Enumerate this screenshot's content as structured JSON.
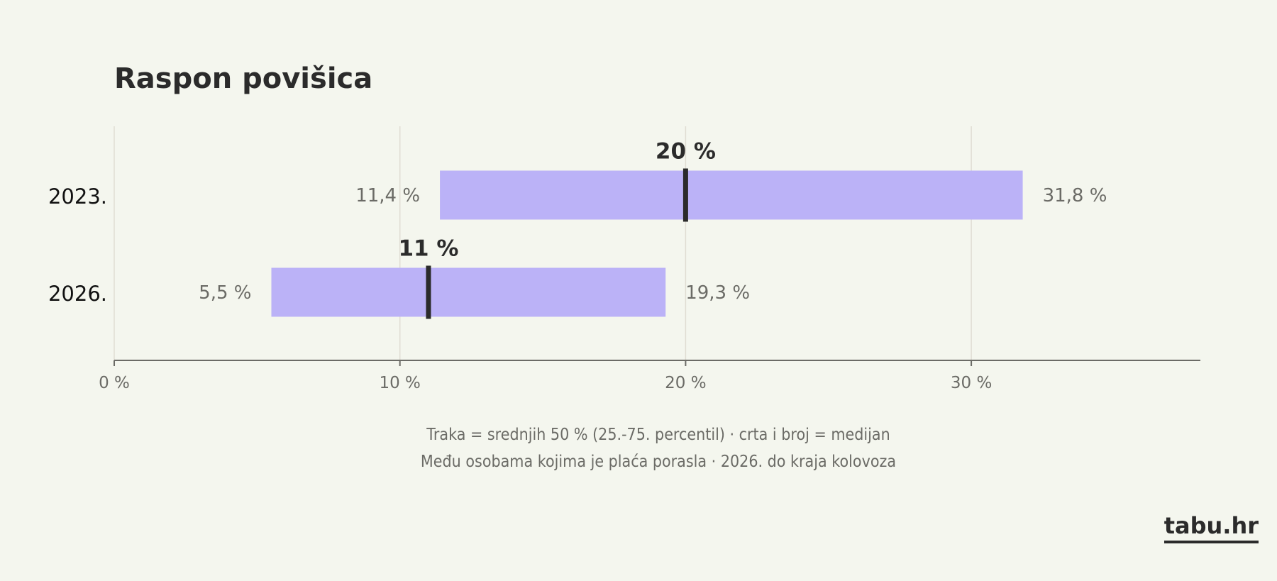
{
  "chart_data": {
    "type": "bar",
    "title": "Raspon povišica",
    "subtitle_lines": [
      "Traka = srednjih 50 % (25.-75. percentil)  ·  crta i broj = medijan",
      "Među osobama kojima je plaća porasla  ·  2026. do kraja kolovoza"
    ],
    "orientation": "horizontal-range",
    "categories": [
      "2023.",
      "2026."
    ],
    "rows": [
      {
        "label": "2023.",
        "p25": 11.4,
        "median": 20,
        "p75": 31.8,
        "p25_label": "11,4 %",
        "median_label": "20 %",
        "p75_label": "31,8 %"
      },
      {
        "label": "2026.",
        "p25": 5.5,
        "median": 11,
        "p75": 19.3,
        "p25_label": "5,5 %",
        "median_label": "11 %",
        "p75_label": "19,3 %"
      }
    ],
    "x_ticks": [
      0,
      10,
      20,
      30
    ],
    "x_tick_labels": [
      "0 %",
      "10 %",
      "20 %",
      "30 %"
    ],
    "xlim": [
      0,
      38
    ],
    "grid": true,
    "colors": {
      "bar": "#bbb2f7",
      "median": "#2b2b2b",
      "grid": "#e0ddd3",
      "axis": "#6b6b66",
      "label": "#6b6b66",
      "text": "#2b2b2b"
    }
  },
  "brand": "tabu.hr"
}
